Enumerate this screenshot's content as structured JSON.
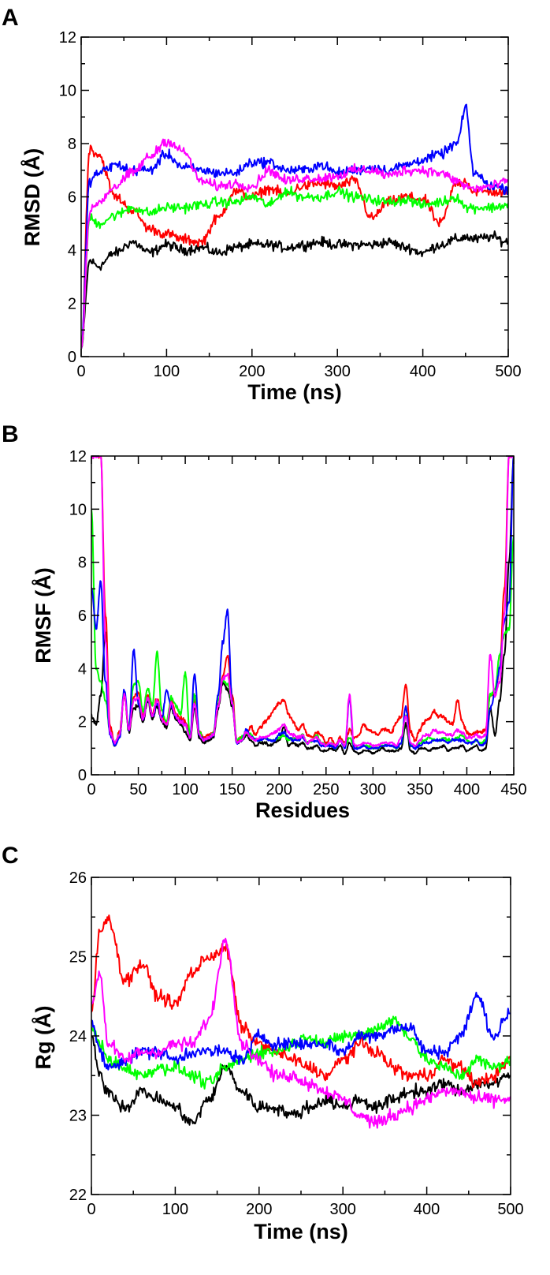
{
  "colors": {
    "black": "#000000",
    "red": "#ff0000",
    "green": "#00ff00",
    "blue": "#0000ff",
    "magenta": "#ff00ff"
  },
  "chart_data": [
    {
      "panel": "A",
      "type": "line",
      "xlabel": "Time (ns)",
      "ylabel": "RMSD (Å)",
      "xlim": [
        0,
        500
      ],
      "ylim": [
        0,
        12
      ],
      "xticks": [
        0,
        100,
        200,
        300,
        400,
        500
      ],
      "yticks": [
        0,
        2,
        4,
        6,
        8,
        10,
        12
      ],
      "x": [
        0,
        10,
        20,
        40,
        60,
        80,
        100,
        120,
        140,
        160,
        180,
        200,
        220,
        240,
        260,
        280,
        300,
        320,
        340,
        360,
        380,
        400,
        420,
        440,
        450,
        460,
        480,
        500
      ],
      "series": [
        {
          "name": "black",
          "color": "#000000",
          "values": [
            0.3,
            3.6,
            3.4,
            3.9,
            4.3,
            3.9,
            4.2,
            4.0,
            4.1,
            3.9,
            4.1,
            4.2,
            4.2,
            4.1,
            4.2,
            4.3,
            4.2,
            4.2,
            4.2,
            4.3,
            4.1,
            3.9,
            4.2,
            4.4,
            4.5,
            4.4,
            4.5,
            4.3
          ]
        },
        {
          "name": "red",
          "color": "#ff0000",
          "values": [
            0.3,
            7.8,
            7.6,
            6.0,
            5.5,
            4.8,
            4.6,
            4.4,
            4.3,
            5.2,
            6.2,
            6.0,
            6.3,
            6.1,
            6.4,
            6.5,
            6.4,
            6.6,
            5.2,
            5.8,
            6.0,
            5.9,
            5.0,
            6.5,
            6.6,
            6.2,
            6.2,
            6.1
          ]
        },
        {
          "name": "green",
          "color": "#00ff00",
          "values": [
            0.3,
            5.2,
            5.0,
            5.3,
            5.6,
            5.4,
            5.6,
            5.6,
            5.7,
            5.8,
            5.8,
            6.0,
            5.7,
            6.2,
            6.0,
            6.0,
            6.2,
            6.0,
            5.9,
            5.8,
            5.9,
            5.7,
            5.8,
            6.0,
            5.6,
            5.6,
            5.6,
            5.7
          ]
        },
        {
          "name": "blue",
          "color": "#0000ff",
          "values": [
            0.3,
            6.6,
            6.9,
            7.2,
            7.0,
            7.0,
            7.6,
            7.1,
            7.0,
            6.9,
            6.9,
            7.3,
            7.3,
            7.0,
            7.0,
            7.2,
            6.9,
            7.0,
            7.1,
            7.0,
            7.2,
            7.4,
            7.6,
            8.0,
            9.3,
            6.9,
            6.4,
            6.3
          ]
        },
        {
          "name": "magenta",
          "color": "#ff00ff",
          "values": [
            0.3,
            5.4,
            5.8,
            6.4,
            6.9,
            7.5,
            8.1,
            7.7,
            6.6,
            6.4,
            6.5,
            6.4,
            7.0,
            6.6,
            6.7,
            6.7,
            6.8,
            7.0,
            7.0,
            6.8,
            7.0,
            7.0,
            6.9,
            6.6,
            6.4,
            6.3,
            6.4,
            6.6
          ]
        }
      ]
    },
    {
      "panel": "B",
      "type": "line",
      "xlabel": "Residues",
      "ylabel": "RMSF (Å)",
      "xlim": [
        0,
        450
      ],
      "ylim": [
        0,
        12
      ],
      "xticks": [
        0,
        50,
        100,
        150,
        200,
        250,
        300,
        350,
        400,
        450
      ],
      "yticks": [
        0,
        2,
        4,
        6,
        8,
        10,
        12
      ],
      "x": [
        0,
        5,
        10,
        15,
        20,
        25,
        30,
        35,
        40,
        45,
        50,
        55,
        60,
        65,
        70,
        75,
        80,
        85,
        90,
        95,
        100,
        105,
        110,
        115,
        120,
        125,
        130,
        135,
        140,
        145,
        150,
        155,
        160,
        165,
        170,
        175,
        180,
        185,
        190,
        195,
        200,
        205,
        210,
        215,
        220,
        225,
        230,
        235,
        240,
        245,
        250,
        255,
        260,
        265,
        270,
        275,
        280,
        285,
        290,
        295,
        300,
        305,
        310,
        315,
        320,
        325,
        330,
        335,
        340,
        345,
        350,
        355,
        360,
        365,
        370,
        375,
        380,
        385,
        390,
        395,
        400,
        405,
        410,
        415,
        420,
        425,
        430,
        435,
        440,
        445,
        450
      ],
      "series": [
        {
          "name": "black",
          "color": "#000000",
          "values": [
            2.2,
            1.9,
            3.0,
            5.4,
            1.6,
            1.1,
            1.4,
            3.0,
            1.6,
            2.5,
            2.6,
            2.0,
            2.8,
            2.1,
            2.6,
            2.0,
            1.8,
            2.5,
            2.1,
            1.9,
            1.6,
            1.3,
            2.5,
            1.4,
            1.2,
            1.3,
            1.4,
            2.5,
            3.5,
            3.2,
            2.6,
            1.2,
            1.3,
            1.5,
            1.3,
            1.1,
            1.2,
            1.2,
            1.1,
            1.2,
            1.3,
            1.8,
            1.1,
            1.2,
            1.1,
            1.2,
            1.0,
            1.0,
            1.1,
            0.9,
            0.9,
            1.0,
            0.9,
            1.1,
            0.8,
            1.2,
            0.9,
            0.8,
            0.9,
            0.9,
            0.8,
            0.9,
            1.0,
            0.9,
            0.9,
            0.9,
            1.0,
            1.9,
            0.9,
            0.8,
            1.0,
            1.0,
            0.9,
            1.0,
            1.0,
            1.1,
            0.9,
            1.0,
            1.0,
            1.1,
            0.9,
            1.0,
            1.1,
            0.9,
            1.0,
            2.5,
            1.5,
            2.8,
            4.5,
            8.0,
            12.0
          ]
        },
        {
          "name": "red",
          "color": "#ff0000",
          "values": [
            12.0,
            12.0,
            12.0,
            6.0,
            1.8,
            1.2,
            1.6,
            3.0,
            1.7,
            2.9,
            3.1,
            2.2,
            3.0,
            2.3,
            2.9,
            2.2,
            2.0,
            2.8,
            2.3,
            2.1,
            2.0,
            1.5,
            2.8,
            1.6,
            1.4,
            1.5,
            1.6,
            2.6,
            3.7,
            4.5,
            3.0,
            1.3,
            1.4,
            1.6,
            1.8,
            1.5,
            1.8,
            2.0,
            2.2,
            2.5,
            2.7,
            2.8,
            2.3,
            2.0,
            1.7,
            1.9,
            1.5,
            1.4,
            1.6,
            1.5,
            1.2,
            1.4,
            1.1,
            1.4,
            1.2,
            1.7,
            1.4,
            1.5,
            1.9,
            1.7,
            1.6,
            1.5,
            1.7,
            1.7,
            1.6,
            2.0,
            2.2,
            3.4,
            1.6,
            1.3,
            1.7,
            2.0,
            2.1,
            2.4,
            2.2,
            2.2,
            2.0,
            1.9,
            2.8,
            2.0,
            1.6,
            1.5,
            1.6,
            1.6,
            1.7,
            3.0,
            3.0,
            4.0,
            7.0,
            12.0,
            12.0
          ]
        },
        {
          "name": "green",
          "color": "#00ff00",
          "values": [
            10.0,
            4.0,
            3.5,
            2.8,
            1.6,
            1.2,
            1.5,
            3.1,
            1.8,
            3.4,
            3.5,
            2.4,
            3.3,
            2.6,
            4.6,
            2.4,
            2.0,
            2.9,
            2.6,
            2.3,
            3.8,
            1.5,
            3.0,
            1.6,
            1.3,
            1.4,
            1.6,
            2.8,
            3.6,
            3.4,
            2.8,
            1.3,
            1.4,
            1.6,
            1.5,
            1.3,
            1.3,
            1.4,
            1.3,
            1.3,
            1.4,
            1.5,
            1.3,
            1.4,
            1.3,
            1.5,
            1.2,
            1.3,
            1.5,
            1.2,
            1.1,
            1.2,
            1.0,
            1.3,
            1.1,
            1.4,
            1.1,
            1.0,
            1.1,
            1.1,
            1.0,
            1.0,
            1.1,
            1.1,
            1.1,
            1.0,
            1.2,
            2.2,
            1.1,
            1.0,
            1.2,
            1.3,
            1.4,
            1.3,
            1.3,
            1.4,
            1.3,
            1.3,
            1.4,
            1.5,
            1.3,
            1.2,
            1.3,
            1.2,
            1.3,
            3.0,
            3.2,
            4.5,
            5.3,
            5.5,
            9.0
          ]
        },
        {
          "name": "blue",
          "color": "#0000ff",
          "values": [
            7.0,
            5.5,
            7.3,
            3.5,
            1.5,
            1.1,
            1.4,
            3.2,
            1.7,
            4.7,
            2.7,
            2.1,
            2.9,
            2.2,
            2.7,
            2.1,
            3.2,
            2.6,
            2.2,
            2.0,
            1.9,
            1.4,
            3.8,
            1.5,
            1.3,
            1.4,
            1.5,
            3.0,
            5.0,
            6.2,
            2.7,
            1.2,
            1.3,
            1.7,
            1.4,
            1.3,
            1.3,
            1.4,
            1.3,
            1.3,
            1.5,
            1.6,
            1.4,
            1.3,
            1.3,
            1.4,
            1.2,
            1.3,
            1.3,
            1.1,
            1.1,
            1.1,
            1.0,
            1.3,
            1.0,
            2.9,
            1.0,
            1.0,
            1.1,
            1.0,
            1.0,
            1.0,
            1.1,
            1.1,
            1.1,
            1.0,
            1.2,
            2.6,
            1.1,
            1.0,
            1.1,
            1.2,
            1.2,
            1.3,
            1.3,
            1.3,
            1.2,
            1.3,
            1.3,
            1.3,
            1.2,
            1.2,
            1.3,
            1.1,
            1.2,
            2.5,
            3.0,
            4.0,
            5.8,
            6.5,
            12.0
          ]
        },
        {
          "name": "magenta",
          "color": "#ff00ff",
          "values": [
            12.0,
            12.0,
            12.0,
            5.0,
            1.6,
            1.2,
            1.5,
            3.0,
            1.7,
            2.8,
            2.9,
            2.1,
            2.9,
            2.2,
            2.8,
            2.1,
            1.9,
            2.7,
            2.2,
            2.0,
            1.9,
            1.4,
            2.7,
            1.5,
            1.3,
            1.4,
            1.5,
            2.6,
            3.6,
            3.8,
            2.7,
            1.2,
            1.3,
            1.6,
            1.4,
            1.3,
            1.4,
            1.4,
            1.5,
            1.6,
            1.7,
            1.9,
            1.6,
            1.5,
            1.4,
            1.5,
            1.2,
            1.3,
            1.4,
            1.2,
            1.1,
            1.2,
            1.1,
            1.3,
            1.1,
            3.0,
            1.1,
            1.1,
            1.2,
            1.2,
            1.1,
            1.1,
            1.2,
            1.2,
            1.2,
            1.1,
            1.4,
            2.2,
            1.2,
            1.1,
            1.3,
            1.5,
            1.5,
            1.7,
            1.6,
            1.6,
            1.5,
            1.5,
            1.7,
            1.6,
            1.4,
            1.4,
            1.5,
            1.4,
            1.5,
            4.5,
            3.0,
            3.5,
            6.0,
            12.0,
            12.0
          ]
        }
      ]
    },
    {
      "panel": "C",
      "type": "line",
      "xlabel": "Time (ns)",
      "ylabel": "Rg (Å)",
      "xlim": [
        0,
        500
      ],
      "ylim": [
        22,
        26
      ],
      "xticks": [
        0,
        100,
        200,
        300,
        400,
        500
      ],
      "yticks": [
        22,
        23,
        24,
        25,
        26
      ],
      "x": [
        0,
        10,
        20,
        40,
        60,
        80,
        100,
        120,
        140,
        160,
        180,
        200,
        220,
        240,
        260,
        280,
        300,
        320,
        340,
        360,
        380,
        400,
        420,
        440,
        460,
        480,
        500
      ],
      "series": [
        {
          "name": "black",
          "color": "#000000",
          "values": [
            24.0,
            23.5,
            23.3,
            23.1,
            23.3,
            23.2,
            23.1,
            22.9,
            23.2,
            23.6,
            23.3,
            23.1,
            23.1,
            23.0,
            23.1,
            23.2,
            23.1,
            23.2,
            23.1,
            23.2,
            23.3,
            23.3,
            23.4,
            23.3,
            23.4,
            23.4,
            23.5
          ]
        },
        {
          "name": "red",
          "color": "#ff0000",
          "values": [
            24.3,
            25.3,
            25.5,
            24.7,
            24.9,
            24.5,
            24.4,
            24.8,
            25.0,
            25.1,
            24.1,
            23.9,
            23.8,
            23.7,
            23.6,
            23.5,
            23.7,
            23.9,
            23.8,
            23.6,
            23.5,
            23.5,
            23.7,
            23.6,
            23.4,
            23.5,
            23.7
          ]
        },
        {
          "name": "green",
          "color": "#00ff00",
          "values": [
            24.1,
            23.9,
            23.7,
            23.6,
            23.5,
            23.6,
            23.6,
            23.5,
            23.4,
            23.6,
            23.7,
            23.8,
            23.8,
            23.9,
            24.0,
            23.9,
            24.0,
            24.0,
            24.1,
            24.2,
            24.0,
            23.7,
            23.6,
            23.5,
            23.7,
            23.6,
            23.7
          ]
        },
        {
          "name": "blue",
          "color": "#0000ff",
          "values": [
            24.2,
            23.8,
            23.6,
            23.7,
            23.8,
            23.8,
            23.7,
            23.8,
            23.8,
            23.8,
            23.7,
            24.0,
            23.9,
            23.9,
            23.9,
            23.9,
            23.8,
            24.0,
            24.0,
            24.1,
            24.1,
            23.8,
            23.8,
            24.0,
            24.5,
            24.0,
            24.3
          ]
        },
        {
          "name": "magenta",
          "color": "#ff00ff",
          "values": [
            24.4,
            24.8,
            23.9,
            23.7,
            23.8,
            23.8,
            23.9,
            23.9,
            24.2,
            25.2,
            23.9,
            23.7,
            23.5,
            23.5,
            23.4,
            23.3,
            23.2,
            23.0,
            22.9,
            23.0,
            23.1,
            23.2,
            23.3,
            23.3,
            23.2,
            23.2,
            23.2
          ]
        }
      ]
    }
  ],
  "panels": [
    {
      "label": "A"
    },
    {
      "label": "B"
    },
    {
      "label": "C"
    }
  ]
}
